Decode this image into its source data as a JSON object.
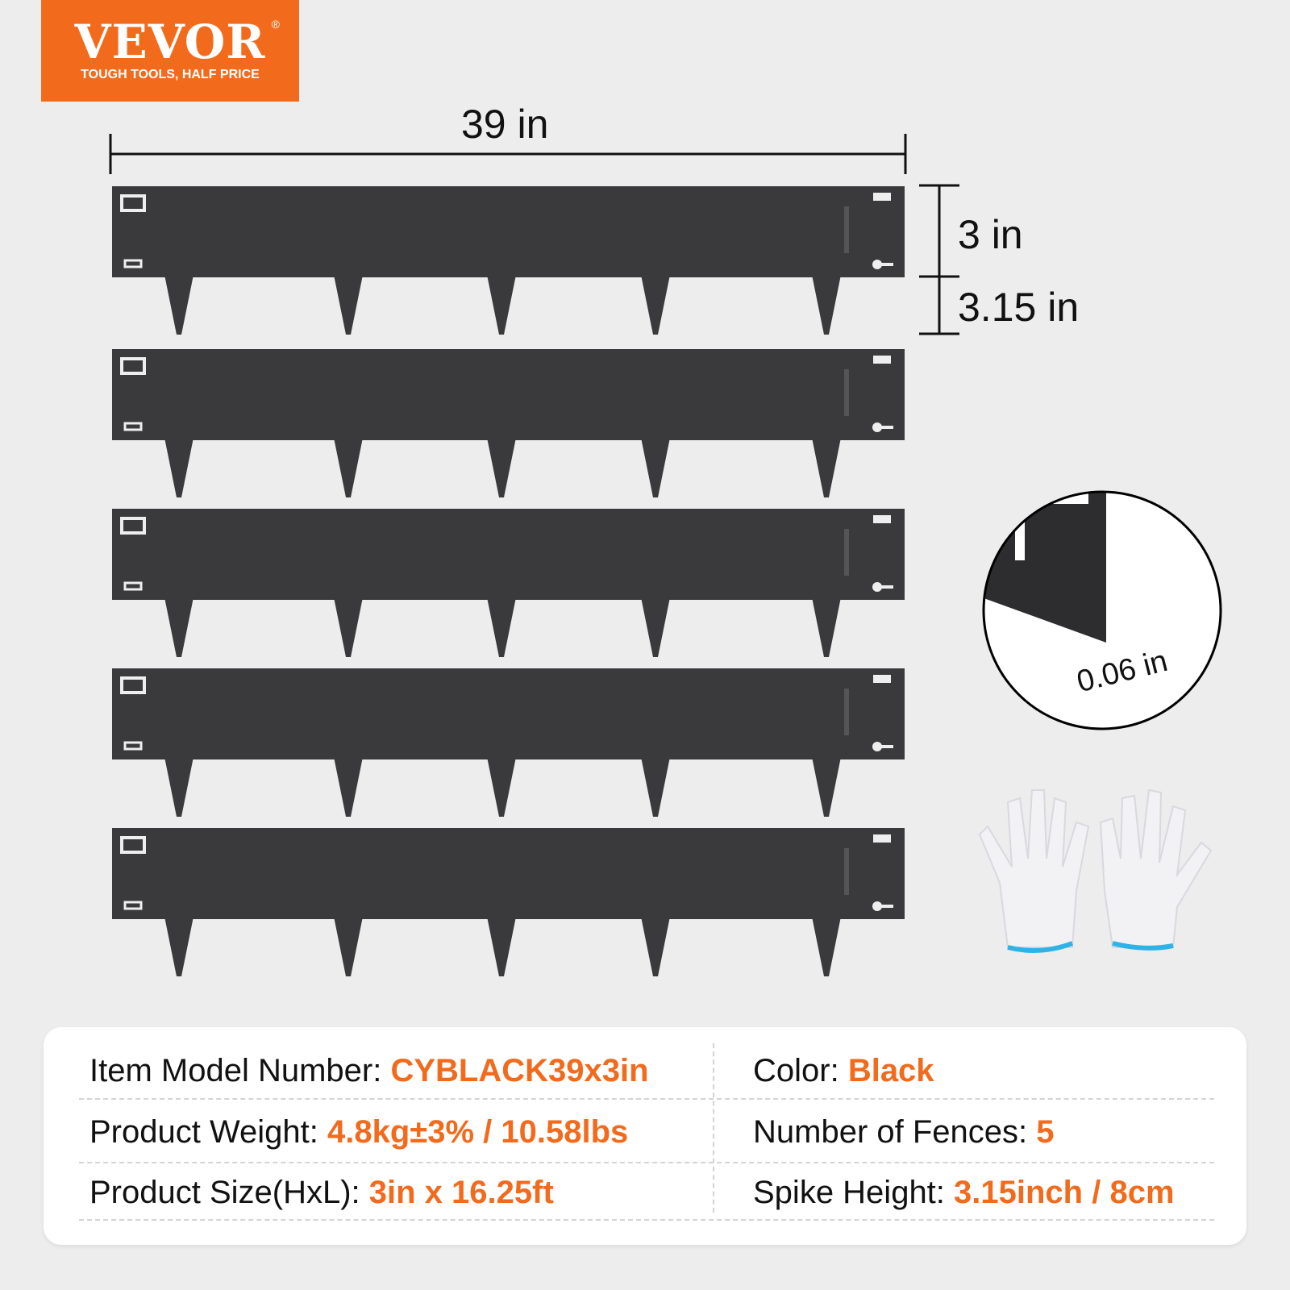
{
  "logo": {
    "brand": "VEVOR",
    "registered": "®",
    "tagline": "TOUGH TOOLS, HALF PRICE"
  },
  "colors": {
    "accent": "#f26b1d",
    "fence": "#3a3a3c",
    "background": "#ededed"
  },
  "dimensions": {
    "length": "39 in",
    "height": "3 in",
    "spike": "3.15 in",
    "thickness": "0.06 in"
  },
  "fence_count": 5,
  "specs": [
    {
      "label": "Item Model Number: ",
      "value": "CYBLACK39x3in"
    },
    {
      "label": "Color: ",
      "value": "Black"
    },
    {
      "label": "Product Weight: ",
      "value": "4.8kg±3% / 10.58lbs"
    },
    {
      "label": "Number of Fences: ",
      "value": "5"
    },
    {
      "label": "Product Size(HxL): ",
      "value": "3in x 16.25ft"
    },
    {
      "label": "Spike Height: ",
      "value": "3.15inch / 8cm"
    }
  ]
}
